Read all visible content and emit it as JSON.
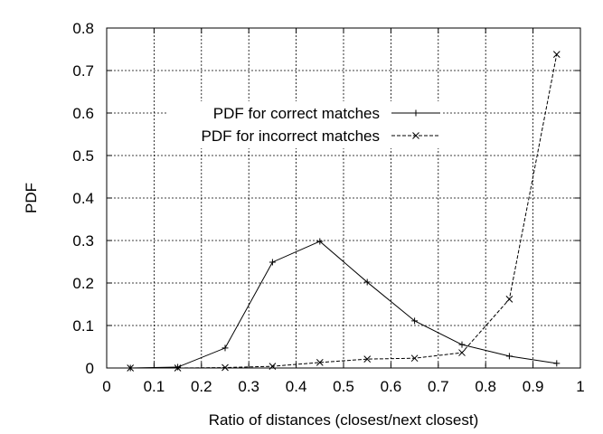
{
  "chart_data": {
    "type": "line",
    "title": "",
    "xlabel": "Ratio of distances (closest/next closest)",
    "ylabel": "PDF",
    "xlim": [
      0,
      1
    ],
    "ylim": [
      0,
      0.8
    ],
    "xticks": [
      "0",
      "0.1",
      "0.2",
      "0.3",
      "0.4",
      "0.5",
      "0.6",
      "0.7",
      "0.8",
      "0.9",
      "1"
    ],
    "yticks": [
      "0",
      "0.1",
      "0.2",
      "0.3",
      "0.4",
      "0.5",
      "0.6",
      "0.7",
      "0.8"
    ],
    "grid": true,
    "legend_placement": "upper-left-center",
    "x": [
      0.05,
      0.15,
      0.25,
      0.35,
      0.45,
      0.55,
      0.65,
      0.75,
      0.85,
      0.95
    ],
    "series": [
      {
        "name": "PDF for correct matches",
        "style": "solid",
        "marker": "plus",
        "color": "#000000",
        "values": [
          0.0,
          0.002,
          0.047,
          0.249,
          0.298,
          0.202,
          0.111,
          0.055,
          0.028,
          0.011
        ]
      },
      {
        "name": "PDF for incorrect matches",
        "style": "dashed",
        "marker": "cross",
        "color": "#000000",
        "values": [
          0.0,
          0.0,
          0.001,
          0.004,
          0.013,
          0.021,
          0.023,
          0.036,
          0.162,
          0.738
        ]
      }
    ]
  }
}
